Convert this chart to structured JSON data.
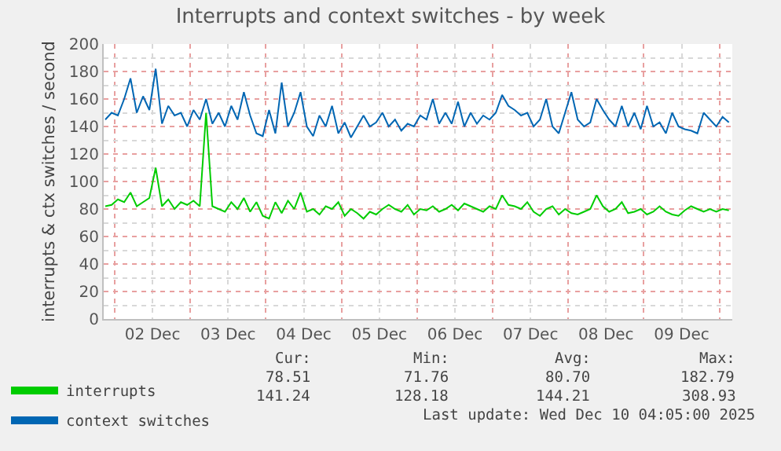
{
  "chart_data": {
    "type": "line",
    "title": "Interrupts and context switches - by week",
    "ylabel": "interrupts & ctx switches / second",
    "x": [
      "2025-12-01T21:00",
      "2025-12-01T23:00",
      "2025-12-02T01:00",
      "2025-12-02T03:00",
      "2025-12-02T05:00",
      "2025-12-02T07:00",
      "2025-12-02T09:00",
      "2025-12-02T11:00",
      "2025-12-02T13:00",
      "2025-12-02T15:00",
      "2025-12-02T17:00",
      "2025-12-02T19:00",
      "2025-12-02T21:00",
      "2025-12-02T23:00",
      "2025-12-03T01:00",
      "2025-12-03T03:00",
      "2025-12-03T05:00",
      "2025-12-03T07:00",
      "2025-12-03T09:00",
      "2025-12-03T11:00",
      "2025-12-03T13:00",
      "2025-12-03T15:00",
      "2025-12-03T17:00",
      "2025-12-03T19:00",
      "2025-12-03T21:00",
      "2025-12-03T23:00",
      "2025-12-04T01:00",
      "2025-12-04T03:00",
      "2025-12-04T05:00",
      "2025-12-04T07:00",
      "2025-12-04T09:00",
      "2025-12-04T11:00",
      "2025-12-04T13:00",
      "2025-12-04T15:00",
      "2025-12-04T17:00",
      "2025-12-04T19:00",
      "2025-12-04T21:00",
      "2025-12-04T23:00",
      "2025-12-05T01:00",
      "2025-12-05T03:00",
      "2025-12-05T05:00",
      "2025-12-05T07:00",
      "2025-12-05T09:00",
      "2025-12-05T11:00",
      "2025-12-05T13:00",
      "2025-12-05T15:00",
      "2025-12-05T17:00",
      "2025-12-05T19:00",
      "2025-12-05T21:00",
      "2025-12-05T23:00",
      "2025-12-06T01:00",
      "2025-12-06T03:00",
      "2025-12-06T05:00",
      "2025-12-06T07:00",
      "2025-12-06T09:00",
      "2025-12-06T11:00",
      "2025-12-06T13:00",
      "2025-12-06T15:00",
      "2025-12-06T17:00",
      "2025-12-06T19:00",
      "2025-12-06T21:00",
      "2025-12-06T23:00",
      "2025-12-07T01:00",
      "2025-12-07T03:00",
      "2025-12-07T05:00",
      "2025-12-07T07:00",
      "2025-12-07T09:00",
      "2025-12-07T11:00",
      "2025-12-07T13:00",
      "2025-12-07T15:00",
      "2025-12-07T17:00",
      "2025-12-07T19:00",
      "2025-12-07T21:00",
      "2025-12-07T23:00",
      "2025-12-08T01:00",
      "2025-12-08T03:00",
      "2025-12-08T05:00",
      "2025-12-08T07:00",
      "2025-12-08T09:00",
      "2025-12-08T11:00",
      "2025-12-08T13:00",
      "2025-12-08T15:00",
      "2025-12-08T17:00",
      "2025-12-08T19:00",
      "2025-12-08T21:00",
      "2025-12-08T23:00",
      "2025-12-09T01:00",
      "2025-12-09T03:00",
      "2025-12-09T05:00",
      "2025-12-09T07:00",
      "2025-12-09T09:00",
      "2025-12-09T11:00",
      "2025-12-09T13:00",
      "2025-12-09T15:00",
      "2025-12-09T17:00",
      "2025-12-09T19:00",
      "2025-12-09T21:00",
      "2025-12-09T23:00",
      "2025-12-10T01:00",
      "2025-12-10T03:00"
    ],
    "xlim": [
      "2025-12-01T20:30",
      "2025-12-10T04:05"
    ],
    "xticks": [
      {
        "value": "2025-12-02T12:00",
        "label": "02 Dec"
      },
      {
        "value": "2025-12-03T12:00",
        "label": "03 Dec"
      },
      {
        "value": "2025-12-04T12:00",
        "label": "04 Dec"
      },
      {
        "value": "2025-12-05T12:00",
        "label": "05 Dec"
      },
      {
        "value": "2025-12-06T12:00",
        "label": "06 Dec"
      },
      {
        "value": "2025-12-07T12:00",
        "label": "07 Dec"
      },
      {
        "value": "2025-12-08T12:00",
        "label": "08 Dec"
      },
      {
        "value": "2025-12-09T12:00",
        "label": "09 Dec"
      }
    ],
    "ylim": [
      0,
      200
    ],
    "yticks": [
      0,
      20,
      40,
      60,
      80,
      100,
      120,
      140,
      160,
      180,
      200
    ],
    "grid": true,
    "legend": "bottom left",
    "series": [
      {
        "name": "interrupts",
        "color": "#00cc00",
        "values": [
          82,
          83,
          87,
          85,
          92,
          82,
          85,
          88,
          110,
          82,
          87,
          80,
          85,
          83,
          86,
          82,
          150,
          82,
          80,
          78,
          85,
          80,
          88,
          78,
          85,
          75,
          73,
          85,
          77,
          86,
          80,
          92,
          78,
          80,
          76,
          82,
          80,
          85,
          75,
          80,
          77,
          73,
          78,
          76,
          80,
          83,
          80,
          78,
          83,
          76,
          80,
          79,
          82,
          78,
          80,
          83,
          79,
          84,
          82,
          80,
          78,
          82,
          80,
          90,
          83,
          82,
          80,
          85,
          78,
          75,
          80,
          82,
          76,
          80,
          77,
          76,
          78,
          80,
          90,
          82,
          78,
          80,
          85,
          77,
          78,
          80,
          76,
          78,
          82,
          78,
          76,
          75,
          79,
          82,
          80,
          78,
          80,
          78,
          80,
          79
        ]
      },
      {
        "name": "context switches",
        "color": "#0066b3",
        "values": [
          145,
          150,
          148,
          160,
          175,
          150,
          162,
          152,
          182,
          142,
          155,
          148,
          150,
          140,
          152,
          145,
          160,
          142,
          150,
          140,
          155,
          145,
          165,
          148,
          135,
          133,
          152,
          135,
          172,
          140,
          150,
          165,
          140,
          133,
          148,
          140,
          155,
          135,
          143,
          132,
          140,
          148,
          140,
          143,
          150,
          140,
          145,
          137,
          142,
          140,
          148,
          145,
          160,
          142,
          150,
          142,
          158,
          140,
          150,
          142,
          148,
          145,
          150,
          163,
          155,
          152,
          148,
          150,
          140,
          145,
          160,
          140,
          135,
          150,
          165,
          145,
          140,
          143,
          160,
          152,
          145,
          140,
          155,
          140,
          150,
          138,
          155,
          140,
          143,
          135,
          150,
          140,
          138,
          137,
          135,
          150,
          145,
          140,
          147,
          143
        ]
      }
    ],
    "annotations": [
      "Cur:",
      "Min:",
      "Avg:",
      "Max:",
      "78.51",
      "71.76",
      "80.70",
      "182.79",
      "141.24",
      "128.18",
      "144.21",
      "308.93",
      "Last update: Wed Dec 10 04:05:00 2025"
    ]
  }
}
